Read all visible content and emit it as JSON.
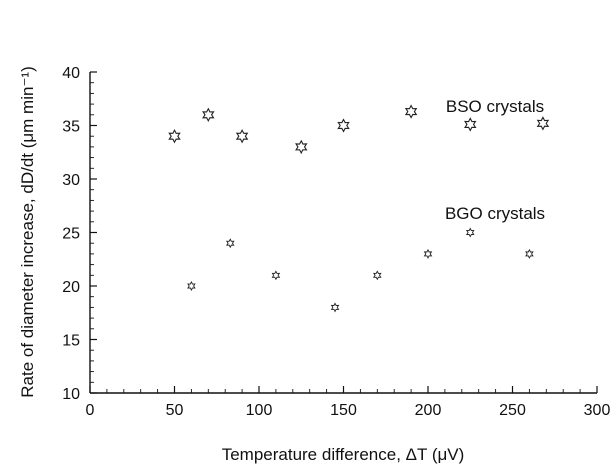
{
  "chart_data": {
    "type": "scatter",
    "title": "",
    "xlabel": "Temperature difference, ΔT (μV)",
    "ylabel": "Rate of diameter increase, dD/dt (μm min⁻¹)",
    "xlim": [
      0,
      300
    ],
    "ylim": [
      10,
      40
    ],
    "x_ticks": [
      0,
      50,
      100,
      150,
      200,
      250,
      300
    ],
    "y_ticks": [
      10,
      15,
      20,
      25,
      30,
      35,
      40
    ],
    "grid": false,
    "legend": "none",
    "series": [
      {
        "name": "BSO crystals",
        "marker": "large-open-star",
        "points": [
          {
            "x": 50,
            "y": 34
          },
          {
            "x": 70,
            "y": 36
          },
          {
            "x": 90,
            "y": 34
          },
          {
            "x": 125,
            "y": 33
          },
          {
            "x": 150,
            "y": 35
          },
          {
            "x": 190,
            "y": 36.3
          },
          {
            "x": 225,
            "y": 35.1
          },
          {
            "x": 268,
            "y": 35.2
          }
        ]
      },
      {
        "name": "BGO crystals",
        "marker": "small-open-star",
        "points": [
          {
            "x": 60,
            "y": 20
          },
          {
            "x": 83,
            "y": 24
          },
          {
            "x": 110,
            "y": 21
          },
          {
            "x": 145,
            "y": 18
          },
          {
            "x": 170,
            "y": 21
          },
          {
            "x": 200,
            "y": 23
          },
          {
            "x": 225,
            "y": 25
          },
          {
            "x": 260,
            "y": 23
          }
        ]
      }
    ]
  }
}
